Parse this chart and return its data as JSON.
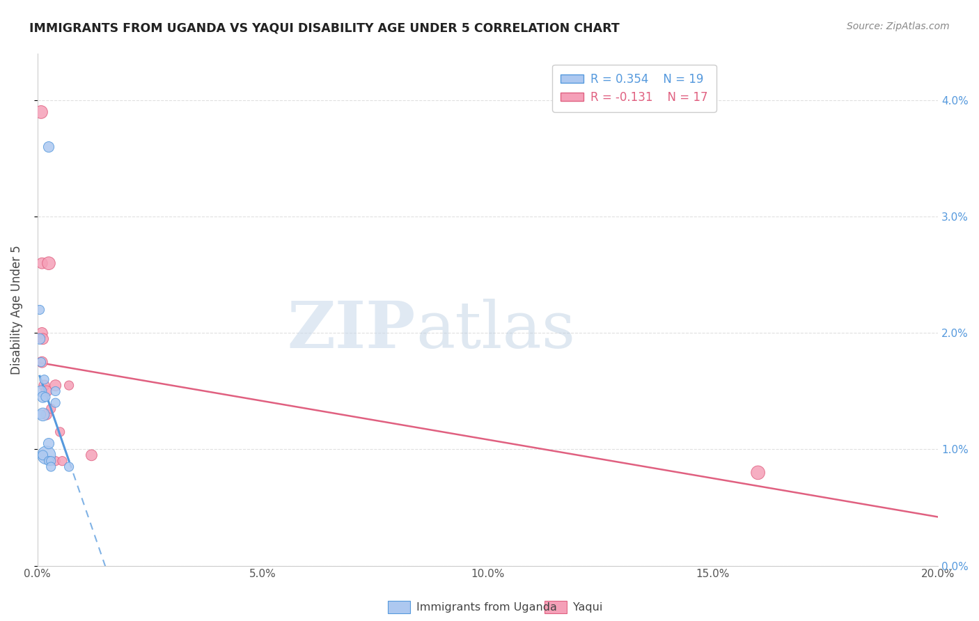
{
  "title": "IMMIGRANTS FROM UGANDA VS YAQUI DISABILITY AGE UNDER 5 CORRELATION CHART",
  "source": "Source: ZipAtlas.com",
  "ylabel": "Disability Age Under 5",
  "legend_label1": "Immigrants from Uganda",
  "legend_label2": "Yaqui",
  "r1": 0.354,
  "n1": 19,
  "r2": -0.131,
  "n2": 17,
  "xlim": [
    0.0,
    0.2
  ],
  "ylim": [
    0.0,
    0.044
  ],
  "xticks": [
    0.0,
    0.05,
    0.1,
    0.15,
    0.2
  ],
  "yticks": [
    0.0,
    0.01,
    0.02,
    0.03,
    0.04
  ],
  "color1": "#adc8f0",
  "color2": "#f5a0b8",
  "trendline1_color": "#5599dd",
  "trendline2_color": "#e06080",
  "blue_points_x": [
    0.0025,
    0.002,
    0.0005,
    0.0005,
    0.0008,
    0.0008,
    0.0008,
    0.0012,
    0.0012,
    0.0012,
    0.0015,
    0.0018,
    0.0025,
    0.0025,
    0.003,
    0.003,
    0.004,
    0.004,
    0.007
  ],
  "blue_points_y": [
    0.036,
    0.0095,
    0.022,
    0.0195,
    0.0175,
    0.015,
    0.013,
    0.0145,
    0.013,
    0.0095,
    0.016,
    0.0145,
    0.0105,
    0.009,
    0.009,
    0.0085,
    0.015,
    0.014,
    0.0085
  ],
  "blue_sizes": [
    120,
    350,
    90,
    120,
    90,
    130,
    90,
    130,
    180,
    100,
    90,
    90,
    120,
    90,
    90,
    90,
    90,
    90,
    90
  ],
  "pink_points_x": [
    0.0008,
    0.001,
    0.001,
    0.001,
    0.0012,
    0.0015,
    0.002,
    0.002,
    0.0025,
    0.003,
    0.004,
    0.004,
    0.005,
    0.0055,
    0.007,
    0.012,
    0.16
  ],
  "pink_points_y": [
    0.039,
    0.026,
    0.02,
    0.0175,
    0.0195,
    0.0155,
    0.015,
    0.013,
    0.026,
    0.0135,
    0.0155,
    0.009,
    0.0115,
    0.009,
    0.0155,
    0.0095,
    0.008
  ],
  "pink_sizes": [
    180,
    130,
    130,
    130,
    130,
    120,
    130,
    120,
    180,
    90,
    130,
    90,
    90,
    90,
    90,
    130,
    200
  ],
  "watermark_zip": "ZIP",
  "watermark_atlas": "atlas",
  "background_color": "#ffffff",
  "grid_color": "#e0e0e0",
  "spine_color": "#cccccc",
  "tick_color": "#555555",
  "right_tick_color": "#5599dd"
}
